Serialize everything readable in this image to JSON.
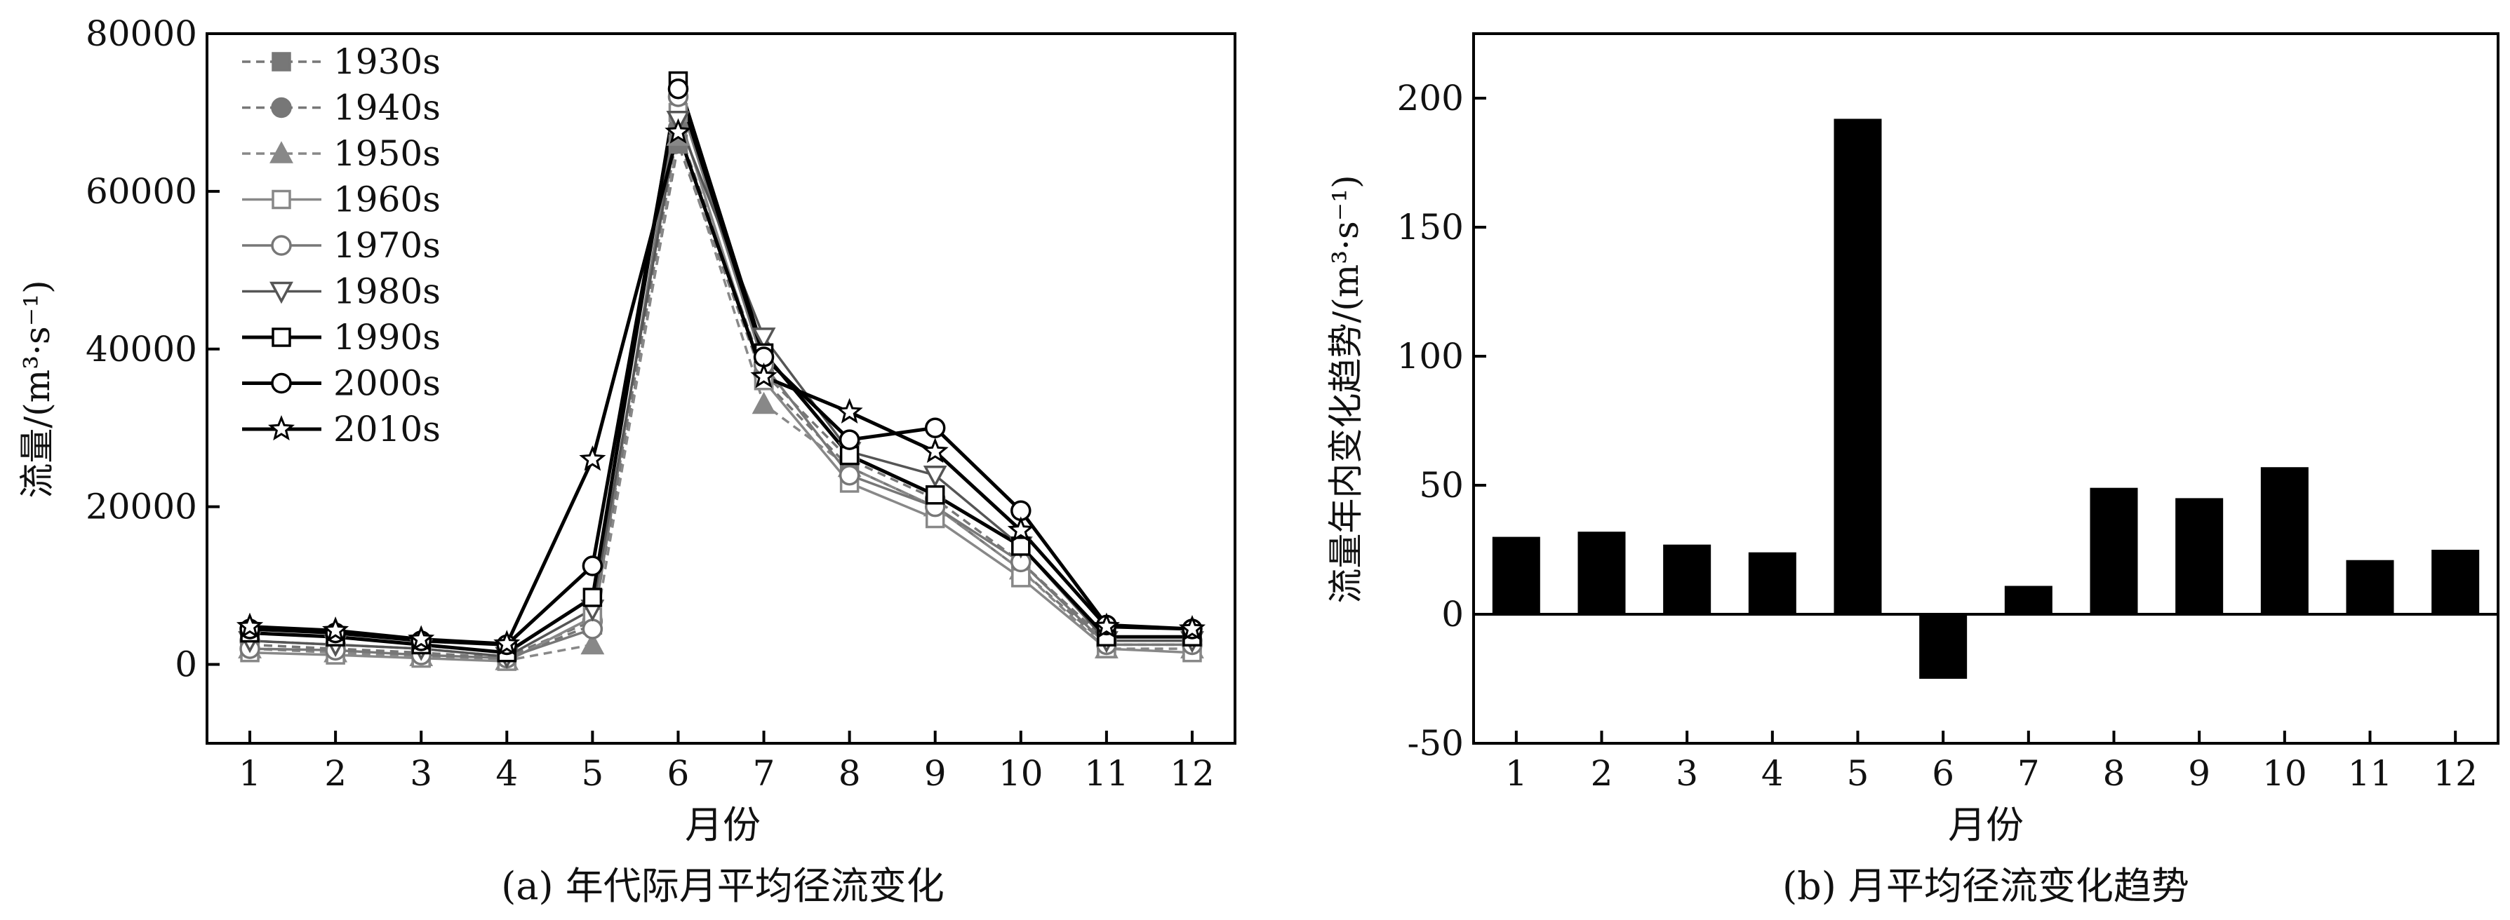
{
  "chart_data": [
    {
      "type": "line",
      "caption": "(a) 年代际月平均径流变化",
      "xlabel": "月份",
      "ylabel": "流量/(m³·s⁻¹)",
      "x": [
        1,
        2,
        3,
        4,
        5,
        6,
        7,
        8,
        9,
        10,
        11,
        12
      ],
      "xlim": [
        0.5,
        12.5
      ],
      "ylim": [
        -10000,
        80000
      ],
      "yticks": [
        0,
        20000,
        40000,
        60000,
        80000
      ],
      "legend_position": "top-left",
      "series": [
        {
          "name": "1930s",
          "marker": "square-filled",
          "dashed": true,
          "color": "#777777",
          "values": [
            2500,
            2000,
            1500,
            800,
            5000,
            66000,
            36000,
            25000,
            20000,
            12000,
            2500,
            2500
          ]
        },
        {
          "name": "1940s",
          "marker": "circle-filled",
          "dashed": true,
          "color": "#777777",
          "values": [
            3000,
            2500,
            2000,
            1000,
            5500,
            68000,
            37000,
            26000,
            21000,
            13000,
            3000,
            3000
          ]
        },
        {
          "name": "1950s",
          "marker": "triangle-filled",
          "dashed": true,
          "color": "#888888",
          "values": [
            2000,
            1500,
            1000,
            500,
            2500,
            67000,
            33000,
            25000,
            20000,
            12000,
            2000,
            2000
          ]
        },
        {
          "name": "1960s",
          "marker": "square-open",
          "dashed": false,
          "color": "#888888",
          "values": [
            1500,
            1200,
            800,
            400,
            6000,
            70000,
            36000,
            23000,
            18500,
            11000,
            2000,
            1500
          ]
        },
        {
          "name": "1970s",
          "marker": "circle-open",
          "dashed": false,
          "color": "#777777",
          "values": [
            2000,
            1800,
            1200,
            800,
            4500,
            72000,
            38000,
            24000,
            20000,
            13000,
            2500,
            2500
          ]
        },
        {
          "name": "1980s",
          "marker": "triangle-down-open",
          "dashed": false,
          "color": "#555555",
          "values": [
            3000,
            2500,
            2000,
            1000,
            7000,
            69000,
            41500,
            27000,
            24000,
            15000,
            3000,
            3000
          ]
        },
        {
          "name": "1990s",
          "marker": "square-open",
          "dashed": false,
          "color": "#000000",
          "values": [
            4000,
            3500,
            2500,
            1500,
            8500,
            74000,
            39500,
            26500,
            21500,
            15000,
            3500,
            3500
          ]
        },
        {
          "name": "2000s",
          "marker": "circle-open",
          "dashed": false,
          "color": "#000000",
          "values": [
            4500,
            4000,
            3000,
            2500,
            12500,
            73000,
            39000,
            28500,
            30000,
            19500,
            5000,
            4500
          ]
        },
        {
          "name": "2010s",
          "marker": "star-open",
          "dashed": false,
          "color": "#000000",
          "values": [
            4800,
            4300,
            3200,
            2600,
            26000,
            67500,
            36500,
            32000,
            27000,
            17000,
            4800,
            4500
          ]
        }
      ]
    },
    {
      "type": "bar",
      "caption": "(b) 月平均径流变化趋势",
      "xlabel": "月份",
      "ylabel": "流量年内变化趋势/(m³·s⁻¹)",
      "categories": [
        "1",
        "2",
        "3",
        "4",
        "5",
        "6",
        "7",
        "8",
        "9",
        "10",
        "11",
        "12"
      ],
      "values": [
        30,
        32,
        27,
        24,
        192,
        -25,
        11,
        49,
        45,
        57,
        21,
        25
      ],
      "ylim": [
        -50,
        225
      ],
      "yticks": [
        -50,
        0,
        50,
        100,
        150,
        200
      ],
      "bar_color": "#000000"
    }
  ]
}
